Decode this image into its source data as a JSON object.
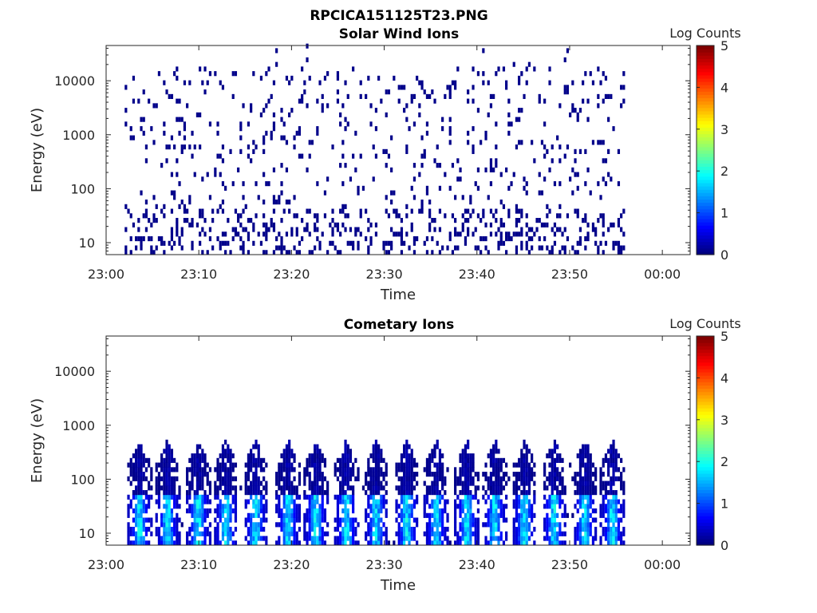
{
  "figure_title": "RPCICA151125T23.PNG",
  "chart_data": [
    {
      "type": "heatmap",
      "title": "Solar Wind Ions",
      "xlabel": "Time",
      "ylabel": "Energy (eV)",
      "yscale": "log",
      "x_range": [
        "23:00",
        "00:03"
      ],
      "y_range": [
        6,
        45000
      ],
      "x_ticks": [
        "23:00",
        "23:10",
        "23:20",
        "23:30",
        "23:40",
        "23:50",
        "00:00"
      ],
      "y_ticks": [
        "10",
        "100",
        "1000",
        "10000"
      ],
      "y_tick_values": [
        10,
        100,
        1000,
        10000
      ],
      "colorbar": {
        "label": "Log Counts",
        "ticks": [
          "0",
          "1",
          "2",
          "3",
          "4",
          "5"
        ],
        "range": [
          0,
          5
        ],
        "colormap": "jet"
      },
      "data_time_extent": [
        "23:02",
        "23:56"
      ],
      "intensity_summary": "sparse single-count (log ~0) hits scattered from ~6 eV to ~30000 eV; denser columns below ~40 eV",
      "grid": false,
      "legend": "none"
    },
    {
      "type": "heatmap",
      "title": "Cometary Ions",
      "xlabel": "Time",
      "ylabel": "Energy (eV)",
      "yscale": "log",
      "x_range": [
        "23:00",
        "00:03"
      ],
      "y_range": [
        6,
        45000
      ],
      "x_ticks": [
        "23:00",
        "23:10",
        "23:20",
        "23:30",
        "23:40",
        "23:50",
        "00:00"
      ],
      "y_ticks": [
        "10",
        "100",
        "1000",
        "10000"
      ],
      "y_tick_values": [
        10,
        100,
        1000,
        10000
      ],
      "colorbar": {
        "label": "Log Counts",
        "ticks": [
          "0",
          "1",
          "2",
          "3",
          "4",
          "5"
        ],
        "range": [
          0,
          5
        ],
        "colormap": "jet"
      },
      "data_time_extent": [
        "23:02",
        "23:56"
      ],
      "bursts_at_minutes": [
        3.5,
        6.5,
        9.8,
        12.8,
        16,
        19.5,
        22.5,
        25.8,
        29,
        32.3,
        35.5,
        38.8,
        41.8,
        45,
        48.2,
        51.5,
        54.5
      ],
      "burst_peak_log_counts": 1.8,
      "intensity_summary": "periodic ion bursts every ~3.2 min between ~6 eV and ~500 eV, peak log counts ~1.5-2 near 10-40 eV",
      "grid": false,
      "legend": "none"
    }
  ],
  "colors": {
    "axis": "#262626",
    "background": "#ffffff",
    "colormap_low": "#00008f",
    "colormap_high": "#800000"
  }
}
